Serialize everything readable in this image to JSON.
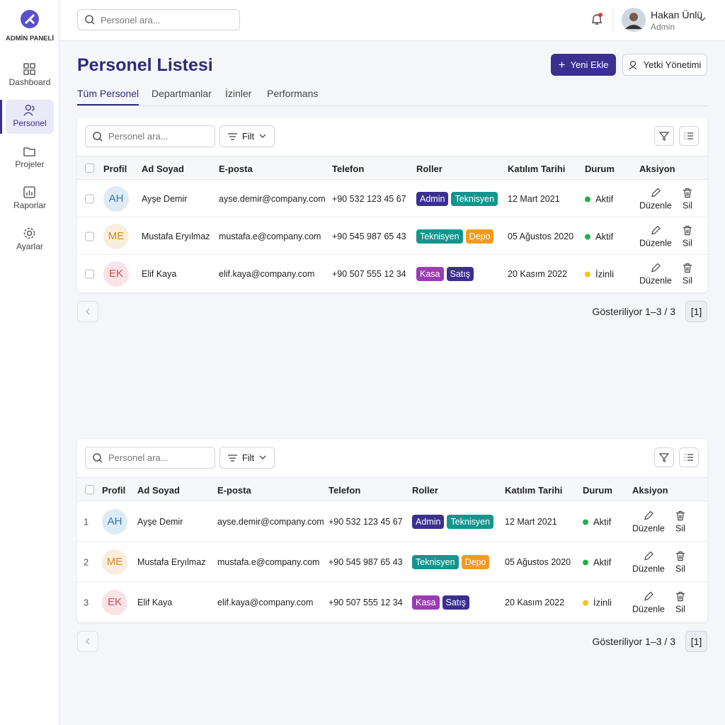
{
  "sidebar": {
    "brand": "ADMİN PANELİ",
    "nav": [
      "Dashboard",
      "Personel",
      "Projeler",
      "Raporlar",
      "Ayarlar"
    ],
    "active": 1
  },
  "topbar": {
    "search_placeholder": "Personel ara...",
    "user_name": "Hakan Ünlü",
    "user_role": "Admin"
  },
  "page": {
    "title": "Personel Listesi",
    "buttons": [
      "Yeni Ekle",
      "Yetki Yönetimi"
    ],
    "tabs": [
      "Tüm Personel",
      "Departmanlar",
      "İzinler",
      "Performans"
    ]
  },
  "tables": [
    {
      "search_placeholder": "Personel ara...",
      "filter": "Filt",
      "columns": [
        "Profil",
        "Ad Soyad",
        "E-posta",
        "Telefon",
        "Roller",
        "Katılım Tarihi",
        "Durum",
        "Aksiyon"
      ],
      "actions": [
        "Düzenle",
        "Sil"
      ],
      "footer": "Gösteriliyor 1–3 / 3",
      "page_button": "[1]",
      "rows": [
        {
          "initials": "AH",
          "avatar_color": "#2a7ab5",
          "name": "Ayşe Demir",
          "email": "ayse.demir@company.com",
          "phone": "+90 532 123 45 67",
          "roles": [
            {
              "label": "Admin",
              "color": "#3b2f8f"
            },
            {
              "label": "Teknisyen",
              "color": "#14958f"
            }
          ],
          "date": "12 Mart 2021",
          "status": "Aktif",
          "status_color": "#22b04b"
        },
        {
          "initials": "ME",
          "avatar_color": "#d98a1e",
          "name": "Mustafa Eryılmaz",
          "email": "mustafa.e@company.com",
          "phone": "+90 545 987 65 43",
          "roles": [
            {
              "label": "Teknisyen",
              "color": "#14958f"
            },
            {
              "label": "Depo",
              "color": "#f29a1d"
            }
          ],
          "date": "05 Ağustos 2020",
          "status": "Aktif",
          "status_color": "#22b04b"
        },
        {
          "initials": "EK",
          "avatar_color": "#d24a5a",
          "name": "Elif Kaya",
          "email": "elif.kaya@company.com",
          "phone": "+90 507 555 12 34",
          "roles": [
            {
              "label": "Kasa",
              "color": "#9b3bb5"
            },
            {
              "label": "Satış",
              "color": "#3b2f8f"
            }
          ],
          "date": "20 Kasım 2022",
          "status": "İzinli",
          "status_color": "#f5c518"
        }
      ]
    },
    {
      "search_placeholder": "Personel ara...",
      "filter": "Filt",
      "columns": [
        "Profil",
        "Ad Soyad",
        "E-posta",
        "Telefon",
        "Roller",
        "Katılım Tarihi",
        "Durum",
        "Aksiyon"
      ],
      "actions": [
        "Düzenle",
        "Sil"
      ],
      "footer": "Gösteriliyor 1–3 / 3",
      "page_button": "[1]",
      "rows": [
        {
          "number": "1",
          "initials": "AH",
          "avatar_color": "#2a7ab5",
          "name": "Ayşe Demir",
          "email": "ayse.demir@company.com",
          "phone": "+90 532 123 45 67",
          "roles": [
            {
              "label": "Admin",
              "color": "#3b2f8f"
            },
            {
              "label": "Teknisyen",
              "color": "#14958f"
            }
          ],
          "date": "12 Mart 2021",
          "status": "Aktif",
          "status_color": "#22b04b"
        },
        {
          "number": "2",
          "initials": "ME",
          "avatar_color": "#d98a1e",
          "name": "Mustafa Eryılmaz",
          "email": "mustafa.e@company.com",
          "phone": "+90 545 987 65 43",
          "roles": [
            {
              "label": "Teknisyen",
              "color": "#14958f"
            },
            {
              "label": "Depo",
              "color": "#f29a1d"
            }
          ],
          "date": "05 Ağustos 2020",
          "status": "Aktif",
          "status_color": "#22b04b"
        },
        {
          "number": "3",
          "initials": "EK",
          "avatar_color": "#d24a5a",
          "name": "Elif Kaya",
          "email": "elif.kaya@company.com",
          "phone": "+90 507 555 12 34",
          "roles": [
            {
              "label": "Kasa",
              "color": "#9b3bb5"
            },
            {
              "label": "Satış",
              "color": "#3b2f8f"
            }
          ],
          "date": "20 Kasım 2022",
          "status": "İzinli",
          "status_color": "#f5c518"
        }
      ]
    }
  ]
}
